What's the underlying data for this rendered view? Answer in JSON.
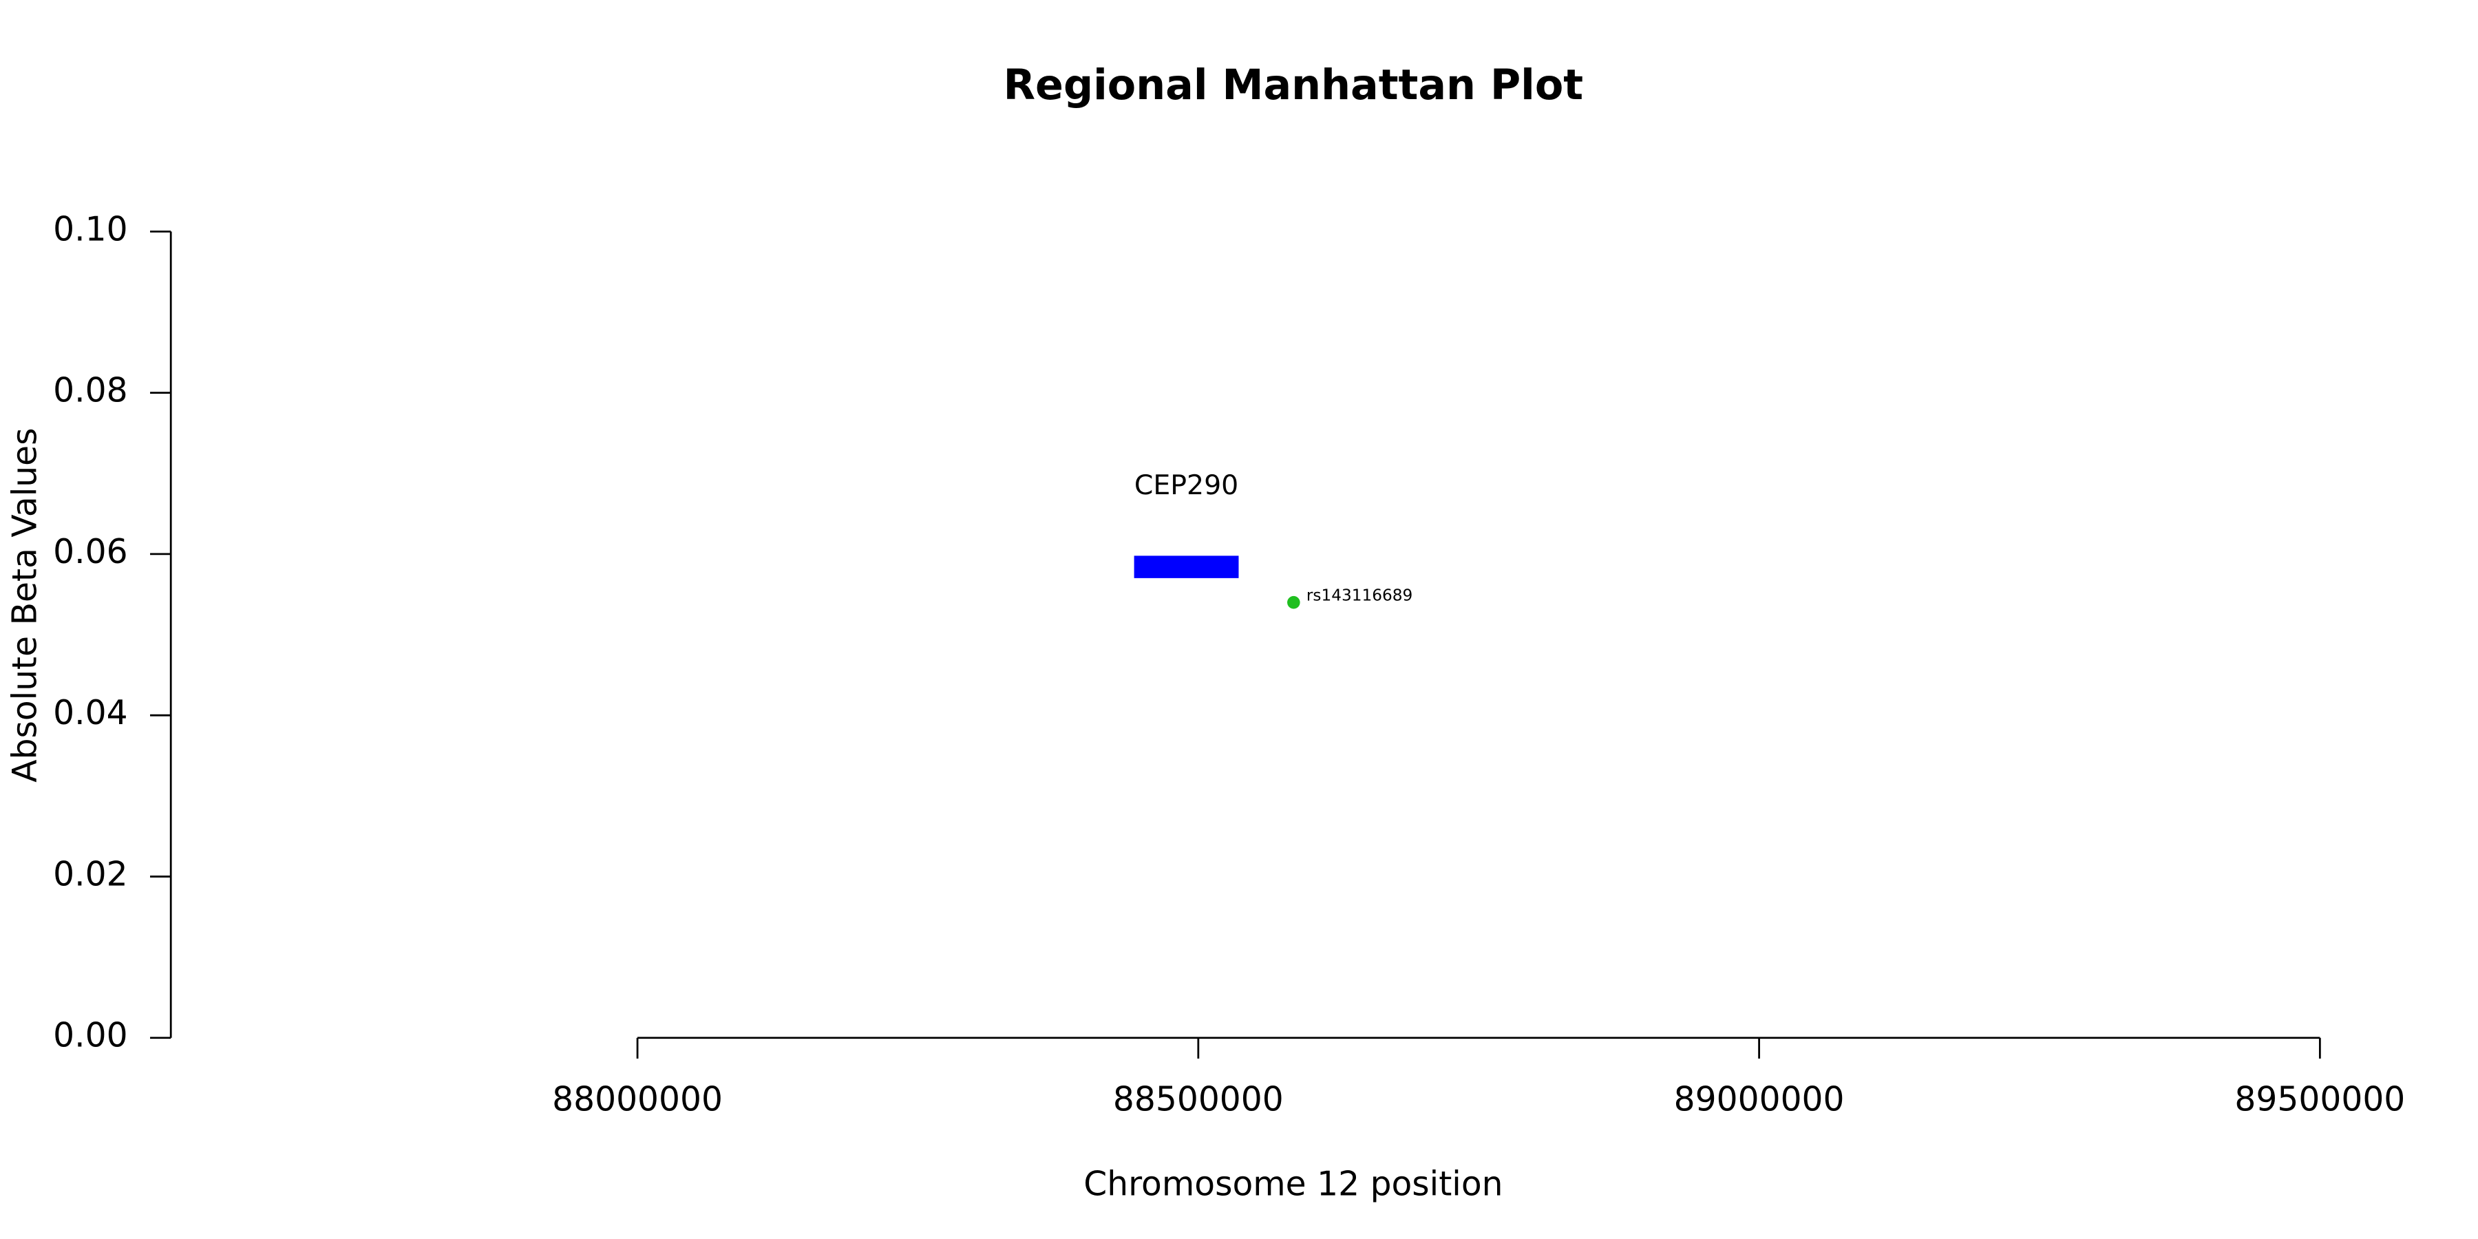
{
  "chart_data": {
    "type": "scatter",
    "title": "Regional Manhattan Plot",
    "x_label": "Chromosome 12 position",
    "y_label": "Absolute Beta Values",
    "xlim": [
      87584000,
      89500000
    ],
    "xticks": [
      88000000,
      88500000,
      89000000,
      89500000
    ],
    "ylim": [
      0,
      0.1
    ],
    "yticks": [
      {
        "value": 0,
        "label": "0.00"
      },
      {
        "value": 0.02,
        "label": "0.02"
      },
      {
        "value": 0.04,
        "label": "0.04"
      },
      {
        "value": 0.06,
        "label": "0.06"
      },
      {
        "value": 0.08,
        "label": "0.08"
      },
      {
        "value": 0.1,
        "label": "0.10"
      }
    ],
    "series": [
      {
        "x": [
          88585000
        ],
        "values": [
          0.054
        ],
        "labels": [
          "rs143116689"
        ],
        "color": "#1fbf1f"
      }
    ],
    "genes": [
      {
        "name": "CEP290",
        "start": 88442790,
        "end": 88535993,
        "y": 0.0584,
        "color": "#0000ff"
      }
    ]
  }
}
